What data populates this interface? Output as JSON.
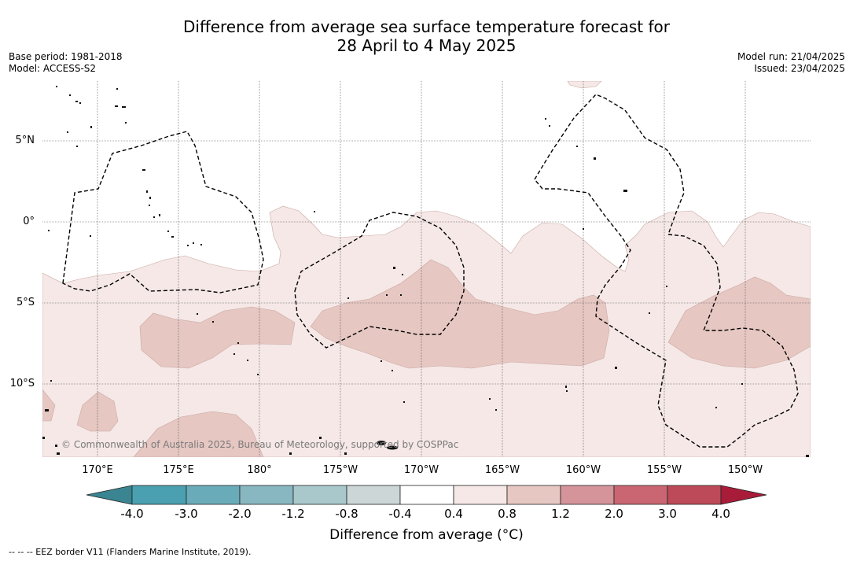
{
  "title_line1": "Difference from average sea surface temperature forecast for",
  "title_line2": "28 April to 4 May 2025",
  "base_period": "Base period: 1981-2018",
  "model": "Model: ACCESS-S2",
  "model_run": "Model run: 21/04/2025",
  "issued": "Issued: 23/04/2025",
  "lat_labels": [
    "5°N",
    "0°",
    "5°S",
    "10°S"
  ],
  "lon_labels": [
    "170°E",
    "175°E",
    "180°",
    "175°W",
    "170°W",
    "165°W",
    "160°W",
    "155°W",
    "150°W"
  ],
  "copyright": "© Commonwealth of Australia 2025, Bureau of Meteorology, supported by COSPPac",
  "colorbar": {
    "label": "Difference from average (°C)",
    "ticks": [
      "-4.0",
      "-3.0",
      "-2.0",
      "-1.2",
      "-0.8",
      "-0.4",
      "0.4",
      "0.8",
      "1.2",
      "2.0",
      "3.0",
      "4.0"
    ],
    "colors": [
      "#3a8591",
      "#4aa0b0",
      "#6aabb9",
      "#89b7c1",
      "#a9c8cb",
      "#ccd6d6",
      "#ffffff",
      "#f5e8e6",
      "#e6c7c2",
      "#d4949a",
      "#c96672",
      "#bd4a58",
      "#a81c3a"
    ]
  },
  "footnote": "-- -- -- EEZ border V11 (Flanders Marine Institute, 2019).",
  "fill_colors": {
    "light": "#f5e8e6",
    "medium": "#e6c7c2"
  }
}
